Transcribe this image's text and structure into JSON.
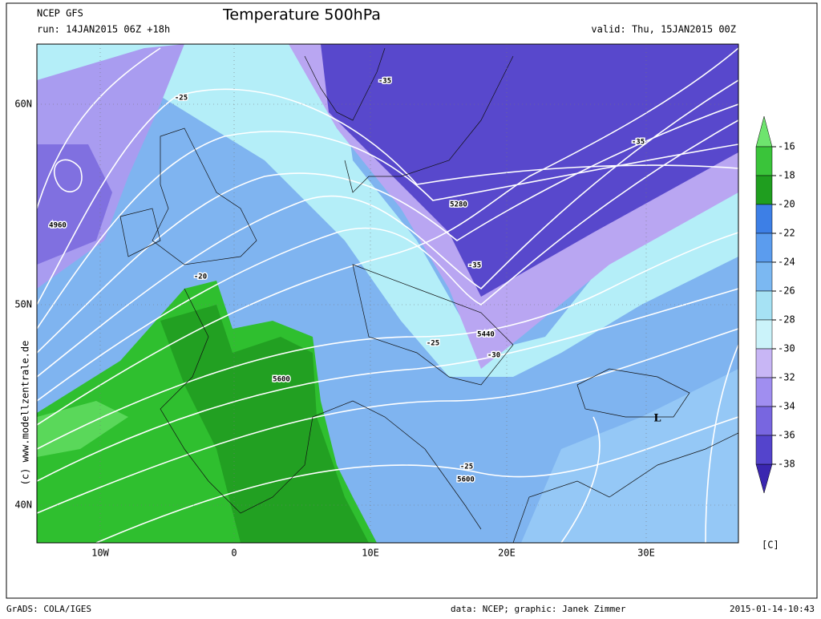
{
  "header": {
    "model": "NCEP GFS",
    "title": "Temperature 500hPa",
    "run": "run: 14JAN2015 06Z +18h",
    "valid": "valid: Thu, 15JAN2015 00Z"
  },
  "map": {
    "lat_labels": [
      "60N",
      "50N",
      "40N"
    ],
    "lon_labels": [
      "10W",
      "0",
      "10E",
      "20E",
      "30E"
    ],
    "contour_labels": [
      "-35",
      "-25",
      "-35",
      "5280",
      "-35",
      "4960",
      "-20",
      "5440",
      "-25",
      "-30",
      "5600",
      "-25",
      "5600",
      "L"
    ],
    "credit": "(c) www.modellzentrale.de"
  },
  "legend": {
    "labels": [
      "-16",
      "-18",
      "-20",
      "-22",
      "-24",
      "-26",
      "-28",
      "-30",
      "-32",
      "-34",
      "-36",
      "-38"
    ],
    "unit": "[C]"
  },
  "footer": {
    "software": "GrADS: COLA/IGES",
    "source": "data: NCEP; graphic: Janek Zimmer",
    "timestamp": "2015-01-14-10:43"
  }
}
